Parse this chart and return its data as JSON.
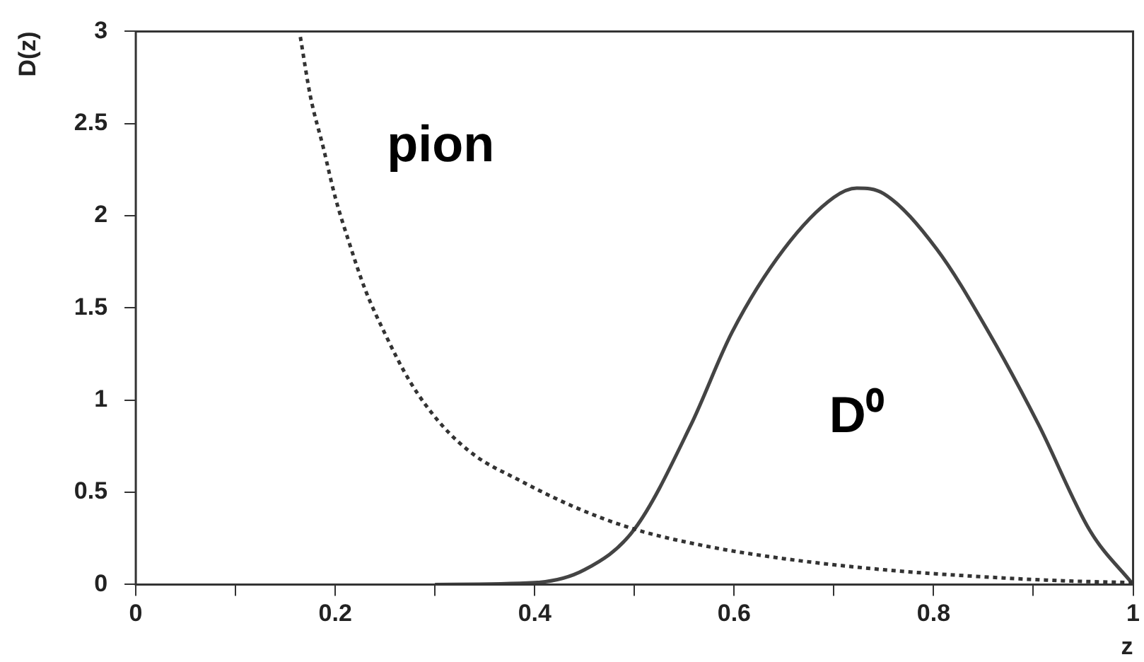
{
  "chart_data": {
    "type": "line",
    "xlabel": "z",
    "ylabel": "D(z)",
    "xlim": [
      0,
      1
    ],
    "ylim": [
      0,
      3
    ],
    "xticks": [
      0,
      {
        "value": 0.1,
        "label": null
      },
      0.2,
      {
        "value": 0.3,
        "label": null
      },
      0.4,
      {
        "value": 0.5,
        "label": null
      },
      0.6,
      {
        "value": 0.7,
        "label": null
      },
      0.8,
      {
        "value": 0.9,
        "label": null
      },
      1
    ],
    "yticks": [
      0,
      0.5,
      1,
      1.5,
      2,
      2.5,
      3
    ],
    "grid": false,
    "legend": false,
    "marker": "none",
    "series": [
      {
        "name": "pion",
        "color": "#333333",
        "line_style": "dotted",
        "x": [
          0.165,
          0.175,
          0.188,
          0.2,
          0.213,
          0.23,
          0.249,
          0.275,
          0.306,
          0.34,
          0.383,
          0.44,
          0.5,
          0.57,
          0.65,
          0.75,
          0.855,
          0.93,
          1.0
        ],
        "values": [
          2.97,
          2.65,
          2.37,
          2.1,
          1.87,
          1.6,
          1.37,
          1.1,
          0.87,
          0.7,
          0.57,
          0.42,
          0.3,
          0.21,
          0.14,
          0.08,
          0.04,
          0.02,
          0.01
        ]
      },
      {
        "name": "D⁰",
        "color": "#444444",
        "line_style": "solid",
        "x": [
          0.3,
          0.4,
          0.45,
          0.5,
          0.557,
          0.598,
          0.65,
          0.7,
          0.723,
          0.75,
          0.803,
          0.855,
          0.905,
          0.957,
          1.0
        ],
        "values": [
          0,
          0.01,
          0.08,
          0.3,
          0.87,
          1.37,
          1.82,
          2.1,
          2.15,
          2.12,
          1.82,
          1.37,
          0.87,
          0.29,
          0
        ]
      }
    ]
  }
}
